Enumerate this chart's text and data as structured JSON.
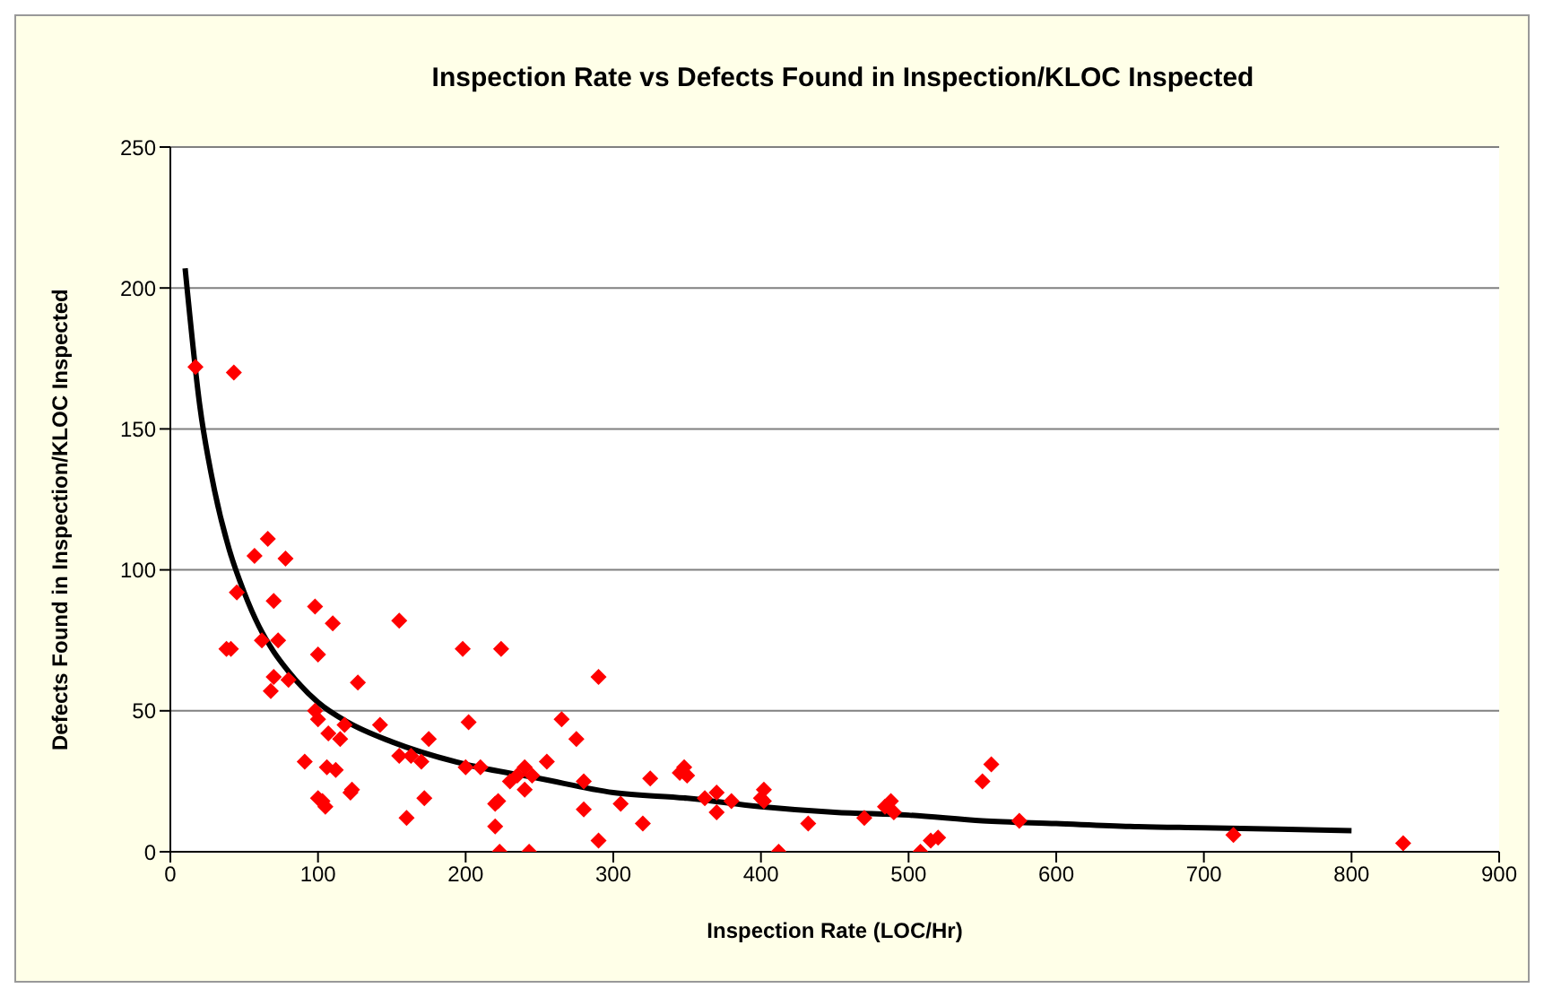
{
  "chart_data": {
    "type": "scatter",
    "title": "Inspection Rate vs Defects Found in Inspection/KLOC Inspected",
    "xlabel": "Inspection Rate (LOC/Hr)",
    "ylabel": "Defects Found in Inspection/KLOC Inspected",
    "xlim": [
      0,
      900
    ],
    "xticks": [
      0,
      100,
      200,
      300,
      400,
      500,
      600,
      700,
      800,
      900
    ],
    "ylim": [
      0,
      250
    ],
    "yticks": [
      0,
      50,
      100,
      150,
      200,
      250
    ],
    "grid": "y",
    "legend": false,
    "marker": "diamond",
    "series": [
      {
        "color": "#ff0000",
        "x": [
          17,
          43,
          38,
          41,
          45,
          57,
          62,
          66,
          70,
          68,
          70,
          73,
          78,
          80,
          91,
          98,
          98,
          100,
          100,
          100,
          103,
          105,
          106,
          107,
          110,
          112,
          115,
          118,
          122,
          123,
          127,
          142,
          155,
          155,
          160,
          163,
          170,
          172,
          175,
          198,
          200,
          202,
          210,
          220,
          220,
          222,
          223,
          224,
          230,
          235,
          240,
          240,
          243,
          245,
          255,
          265,
          275,
          280,
          280,
          290,
          290,
          305,
          320,
          325,
          345,
          348,
          350,
          362,
          370,
          370,
          380,
          400,
          402,
          402,
          412,
          432,
          470,
          484,
          488,
          490,
          508,
          515,
          520,
          550,
          556,
          575,
          720,
          835
        ],
        "values": [
          172,
          170,
          72,
          72,
          92,
          105,
          75,
          111,
          89,
          57,
          62,
          75,
          104,
          61,
          32,
          87,
          50,
          47,
          70,
          19,
          18,
          16,
          30,
          42,
          81,
          29,
          40,
          45,
          21,
          22,
          60,
          45,
          82,
          34,
          12,
          34,
          32,
          19,
          40,
          72,
          30,
          46,
          30,
          17,
          9,
          18,
          0,
          72,
          25,
          27,
          30,
          22,
          0,
          27,
          32,
          47,
          40,
          25,
          15,
          62,
          4,
          17,
          10,
          26,
          28,
          30,
          27,
          19,
          21,
          14,
          18,
          19,
          22,
          18,
          0,
          10,
          12,
          16,
          18,
          14,
          0,
          4,
          5,
          25,
          31,
          11,
          6,
          3
        ]
      },
      {
        "type": "line",
        "color": "#000000",
        "marker": "none",
        "x": [
          10,
          20,
          30,
          40,
          50,
          60,
          70,
          80,
          100,
          120,
          150,
          200,
          250,
          300,
          350,
          400,
          450,
          500,
          550,
          600,
          650,
          700,
          750,
          800
        ],
        "values": [
          207,
          158,
          128,
          107,
          92,
          80,
          71,
          64,
          53,
          46,
          39,
          31,
          26,
          21,
          19,
          16,
          14,
          13,
          11,
          10,
          9,
          8.5,
          8,
          7.5
        ]
      }
    ]
  }
}
